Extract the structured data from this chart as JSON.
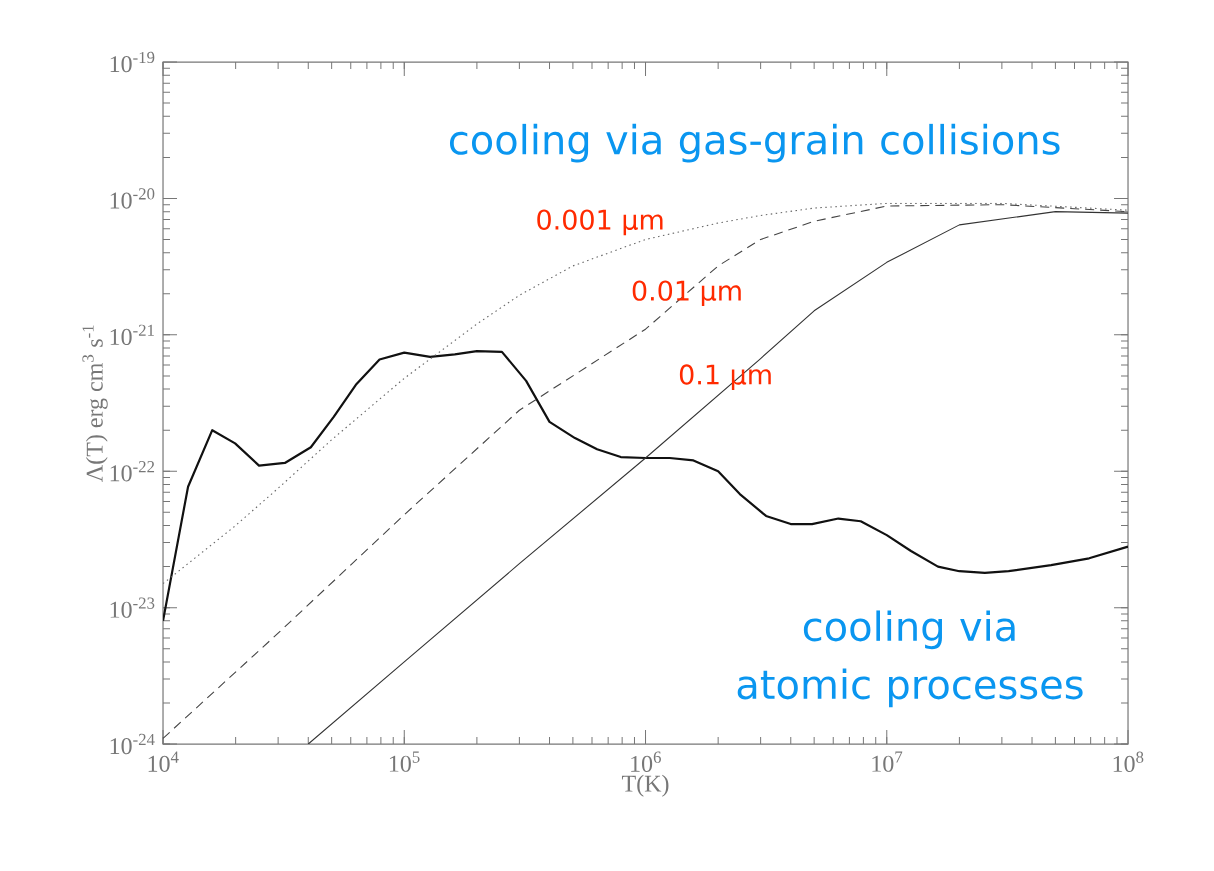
{
  "chart_data": {
    "type": "line",
    "log": "xy",
    "xlabel": "T(K)",
    "ylabel": "Λ(T) erg cm$^{3}$ s$^{-1}$",
    "xlim": [
      10000,
      100000000
    ],
    "ylim": [
      1e-24,
      1e-19
    ],
    "xticks": [
      {
        "value": 10000,
        "label": "10$^{4}$"
      },
      {
        "value": 100000,
        "label": "10$^{5}$"
      },
      {
        "value": 1000000,
        "label": "10$^{6}$"
      },
      {
        "value": 10000000,
        "label": "10$^{7}$"
      },
      {
        "value": 100000000,
        "label": "10$^{8}$"
      }
    ],
    "yticks": [
      {
        "value": 1e-24,
        "label": "10$^{-24}$"
      },
      {
        "value": 1e-23,
        "label": "10$^{-23}$"
      },
      {
        "value": 1e-22,
        "label": "10$^{-22}$"
      },
      {
        "value": 1e-21,
        "label": "10$^{-21}$"
      },
      {
        "value": 1e-20,
        "label": "10$^{-20}$"
      },
      {
        "value": 1e-19,
        "label": "10$^{-19}$"
      }
    ],
    "annotations": [
      "cooling via gas-grain collisions",
      "cooling via atomic processes"
    ],
    "series": [
      {
        "color": "#111111",
        "line_style": "solid",
        "x": [
          10000,
          12700,
          16000,
          19900,
          25000,
          32000,
          41000,
          51000,
          63000,
          79000,
          100000,
          128000,
          162000,
          200000,
          254000,
          320000,
          400000,
          510000,
          630000,
          790000,
          1000000,
          1260000,
          1580000,
          2000000,
          2460000,
          3160000,
          4000000,
          4900000,
          6300000,
          7800000,
          10000000,
          12600000,
          16300000,
          20000000,
          25500000,
          32000000,
          48000000,
          69000000,
          100000000
        ],
        "values": [
          8e-24,
          7.7e-23,
          2e-22,
          1.6e-22,
          1.1e-22,
          1.15e-22,
          1.5e-22,
          2.5e-22,
          4.3e-22,
          6.6e-22,
          7.4e-22,
          6.9e-22,
          7.2e-22,
          7.6e-22,
          7.5e-22,
          4.6e-22,
          2.3e-22,
          1.75e-22,
          1.45e-22,
          1.27e-22,
          1.25e-22,
          1.25e-22,
          1.2e-22,
          1e-22,
          6.8e-23,
          4.7e-23,
          4.1e-23,
          4.1e-23,
          4.5e-23,
          4.3e-23,
          3.4e-23,
          2.6e-23,
          2e-23,
          1.85e-23,
          1.8e-23,
          1.85e-23,
          2.05e-23,
          2.3e-23,
          2.8e-23
        ]
      },
      {
        "name": "0.001 μm",
        "color": "#666666",
        "line_style": "dotted",
        "x": [
          10000,
          20000,
          30000,
          50000,
          100000,
          200000,
          300000,
          500000,
          1000000,
          2000000,
          3000000,
          5000000,
          10000000,
          30000000,
          100000000
        ],
        "values": [
          1.5e-23,
          4e-23,
          7.5e-23,
          1.7e-22,
          4.8e-22,
          1.2e-21,
          1.95e-21,
          3.2e-21,
          5e-21,
          6.6e-21,
          7.5e-21,
          8.5e-21,
          9.2e-21,
          9.2e-21,
          8.2e-21
        ]
      },
      {
        "name": "0.01 μm",
        "color": "#444444",
        "line_style": "dashed",
        "x": [
          10000,
          30000,
          100000,
          300000,
          1000000,
          2000000,
          3000000,
          5000000,
          10000000,
          30000000,
          100000000
        ],
        "values": [
          1.1e-24,
          6.5e-24,
          4.8e-23,
          2.8e-22,
          1.1e-21,
          3.2e-21,
          5e-21,
          6.8e-21,
          8.8e-21,
          9e-21,
          8e-21
        ]
      },
      {
        "name": "0.1 μm",
        "color": "#333333",
        "line_style": "solid",
        "x": [
          40000,
          100000,
          300000,
          1000000,
          3000000,
          5000000,
          10000000,
          20000000,
          50000000,
          100000000
        ],
        "values": [
          1e-24,
          4e-24,
          2.1e-23,
          1.25e-22,
          6.7e-22,
          1.5e-21,
          3.4e-21,
          6.4e-21,
          8e-21,
          7.8e-21
        ]
      }
    ]
  }
}
